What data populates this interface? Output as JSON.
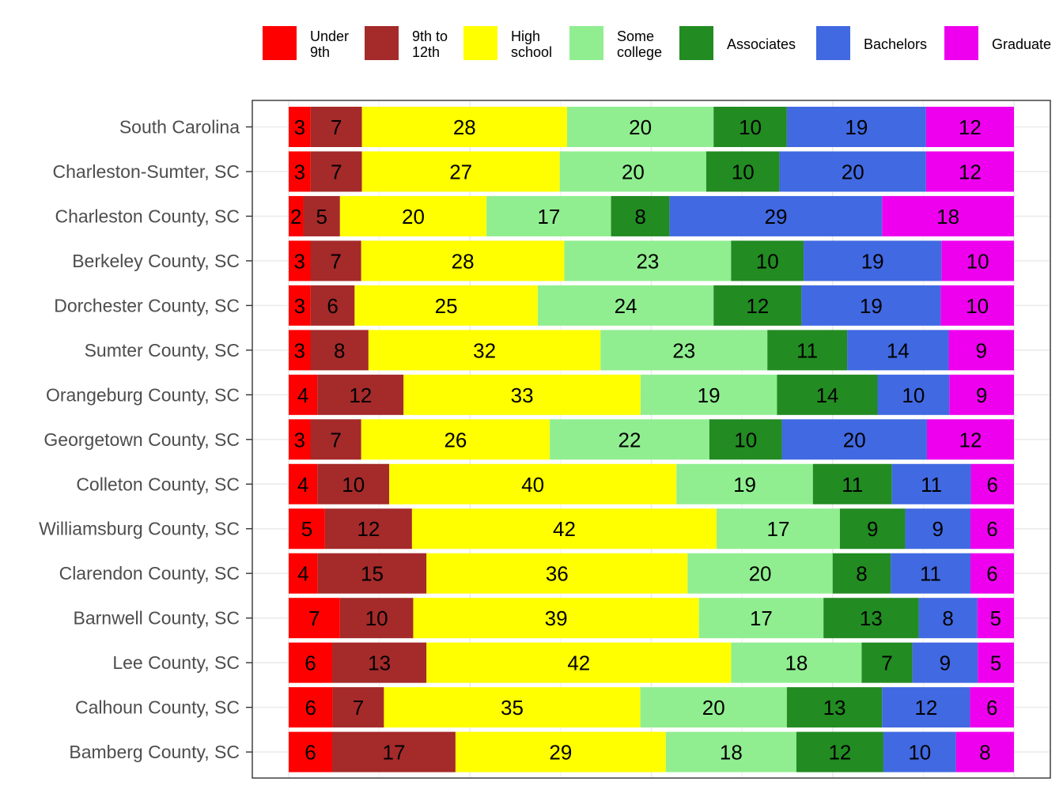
{
  "chart_data": {
    "type": "bar",
    "orientation": "horizontal",
    "stacked": true,
    "normalized": true,
    "title": "",
    "xlabel": "",
    "ylabel": "",
    "grid": true,
    "legend_position": "top",
    "categories": [
      "South Carolina",
      "Charleston-Sumter, SC",
      "Charleston County, SC",
      "Berkeley County, SC",
      "Dorchester County, SC",
      "Sumter County, SC",
      "Orangeburg County, SC",
      "Georgetown County, SC",
      "Colleton County, SC",
      "Williamsburg County, SC",
      "Clarendon County, SC",
      "Barnwell County, SC",
      "Lee County, SC",
      "Calhoun County, SC",
      "Bamberg County, SC"
    ],
    "series": [
      {
        "name": "Under\n9th",
        "color": "#ff0000",
        "values": [
          3,
          3,
          2,
          3,
          3,
          3,
          4,
          3,
          4,
          5,
          4,
          7,
          6,
          6,
          6
        ]
      },
      {
        "name": "9th to\n12th",
        "color": "#a52a2a",
        "values": [
          7,
          7,
          5,
          7,
          6,
          8,
          12,
          7,
          10,
          12,
          15,
          10,
          13,
          7,
          17
        ]
      },
      {
        "name": "High\nschool",
        "color": "#ffff00",
        "values": [
          28,
          27,
          20,
          28,
          25,
          32,
          33,
          26,
          40,
          42,
          36,
          39,
          42,
          35,
          29
        ]
      },
      {
        "name": "Some\ncollege",
        "color": "#90ee90",
        "values": [
          20,
          20,
          17,
          23,
          24,
          23,
          19,
          22,
          19,
          17,
          20,
          17,
          18,
          20,
          18
        ]
      },
      {
        "name": "Associates",
        "color": "#228b22",
        "values": [
          10,
          10,
          8,
          10,
          12,
          11,
          14,
          10,
          11,
          9,
          8,
          13,
          7,
          13,
          12
        ]
      },
      {
        "name": "Bachelors",
        "color": "#4169e1",
        "values": [
          19,
          20,
          29,
          19,
          19,
          14,
          10,
          20,
          11,
          9,
          11,
          8,
          9,
          12,
          10
        ]
      },
      {
        "name": "Graduate",
        "color": "#ee00ee",
        "values": [
          12,
          12,
          18,
          10,
          10,
          9,
          9,
          12,
          6,
          6,
          6,
          5,
          5,
          6,
          8
        ]
      }
    ]
  }
}
